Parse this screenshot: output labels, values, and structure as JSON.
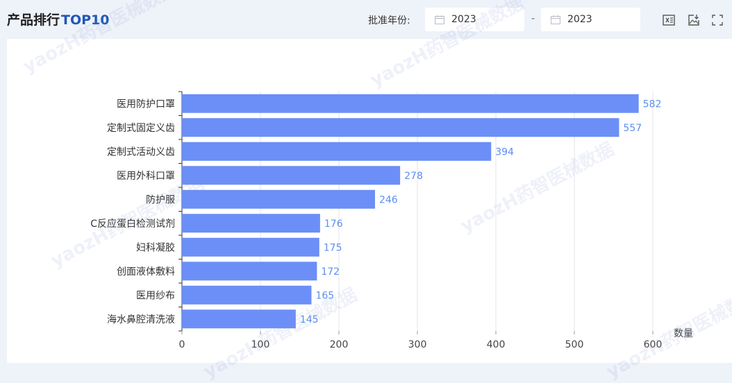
{
  "header": {
    "title_main": "产品排行",
    "title_accent": "TOP10",
    "filter_label": "批准年份:",
    "date_from": "2023",
    "date_separator": "-",
    "date_to": "2023"
  },
  "icons": {
    "export_excel": "excel-export-icon",
    "download_image": "image-download-icon",
    "fullscreen": "fullscreen-icon"
  },
  "watermark_text": "yaozH药智医械数据",
  "colors": {
    "bar": "#6b8ff7",
    "value": "#5b8ff0",
    "accent": "#1f57b8"
  },
  "chart_data": {
    "type": "bar",
    "orientation": "horizontal",
    "categories": [
      "医用防护口罩",
      "定制式固定义齿",
      "定制式活动义齿",
      "医用外科口罩",
      "防护服",
      "C反应蛋白检测试剂",
      "妇科凝胶",
      "创面液体敷料",
      "医用纱布",
      "海水鼻腔清洗液"
    ],
    "values": [
      582,
      557,
      394,
      278,
      246,
      176,
      175,
      172,
      165,
      145
    ],
    "xlabel": "数量",
    "xlim": [
      0,
      600
    ],
    "xticks": [
      0,
      100,
      200,
      300,
      400,
      500,
      600
    ],
    "grid": true
  }
}
